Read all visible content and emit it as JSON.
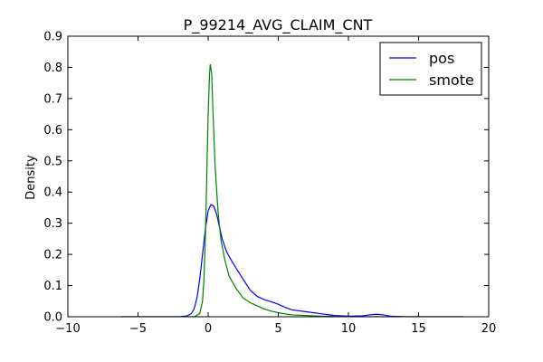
{
  "chart_data": {
    "type": "line",
    "title": "P_99214_AVG_CLAIM_CNT",
    "xlabel": "",
    "ylabel": "Density",
    "xlim": [
      -10,
      20
    ],
    "ylim": [
      0,
      0.9
    ],
    "x_ticks": [
      -10,
      -5,
      0,
      5,
      10,
      15,
      20
    ],
    "y_ticks": [
      0.0,
      0.1,
      0.2,
      0.3,
      0.4,
      0.5,
      0.6,
      0.7,
      0.8,
      0.9
    ],
    "x_tick_labels": [
      "−10",
      "−5",
      "0",
      "5",
      "10",
      "15",
      "20"
    ],
    "y_tick_labels": [
      "0.0",
      "0.1",
      "0.2",
      "0.3",
      "0.4",
      "0.5",
      "0.6",
      "0.7",
      "0.8",
      "0.9"
    ],
    "grid": false,
    "legend_position": "top-right",
    "series": [
      {
        "name": "pos",
        "color": "#0000ff",
        "points": [
          [
            -6.2,
            0.0
          ],
          [
            -4,
            0.0
          ],
          [
            -2,
            0.0
          ],
          [
            -1.5,
            0.003
          ],
          [
            -1.2,
            0.01
          ],
          [
            -1.0,
            0.025
          ],
          [
            -0.8,
            0.06
          ],
          [
            -0.6,
            0.12
          ],
          [
            -0.4,
            0.2
          ],
          [
            -0.2,
            0.28
          ],
          [
            0.0,
            0.34
          ],
          [
            0.2,
            0.36
          ],
          [
            0.4,
            0.355
          ],
          [
            0.6,
            0.33
          ],
          [
            0.8,
            0.29
          ],
          [
            1.0,
            0.25
          ],
          [
            1.3,
            0.21
          ],
          [
            1.6,
            0.185
          ],
          [
            2.0,
            0.155
          ],
          [
            2.5,
            0.12
          ],
          [
            3.0,
            0.085
          ],
          [
            3.5,
            0.065
          ],
          [
            4.0,
            0.055
          ],
          [
            4.5,
            0.048
          ],
          [
            5.0,
            0.04
          ],
          [
            5.5,
            0.03
          ],
          [
            6.0,
            0.022
          ],
          [
            7.0,
            0.016
          ],
          [
            8.0,
            0.01
          ],
          [
            9.0,
            0.004
          ],
          [
            10.0,
            0.002
          ],
          [
            11.0,
            0.003
          ],
          [
            11.5,
            0.006
          ],
          [
            12.0,
            0.008
          ],
          [
            12.5,
            0.006
          ],
          [
            13.0,
            0.002
          ],
          [
            14.0,
            0.0
          ],
          [
            18.2,
            0.0
          ]
        ]
      },
      {
        "name": "smote",
        "color": "#008000",
        "points": [
          [
            -6.2,
            0.0
          ],
          [
            -4,
            0.0
          ],
          [
            -1.0,
            0.0
          ],
          [
            -0.6,
            0.01
          ],
          [
            -0.4,
            0.05
          ],
          [
            -0.3,
            0.12
          ],
          [
            -0.2,
            0.25
          ],
          [
            -0.1,
            0.45
          ],
          [
            0.0,
            0.65
          ],
          [
            0.1,
            0.78
          ],
          [
            0.15,
            0.81
          ],
          [
            0.25,
            0.78
          ],
          [
            0.35,
            0.65
          ],
          [
            0.5,
            0.48
          ],
          [
            0.7,
            0.34
          ],
          [
            0.9,
            0.25
          ],
          [
            1.2,
            0.18
          ],
          [
            1.5,
            0.13
          ],
          [
            2.0,
            0.09
          ],
          [
            2.5,
            0.06
          ],
          [
            3.0,
            0.045
          ],
          [
            3.5,
            0.035
          ],
          [
            4.0,
            0.025
          ],
          [
            4.5,
            0.018
          ],
          [
            5.0,
            0.013
          ],
          [
            5.5,
            0.009
          ],
          [
            6.0,
            0.006
          ],
          [
            7.0,
            0.004
          ],
          [
            8.0,
            0.002
          ],
          [
            9.0,
            0.001
          ],
          [
            10.0,
            0.0
          ],
          [
            18.2,
            0.0
          ]
        ]
      }
    ]
  }
}
